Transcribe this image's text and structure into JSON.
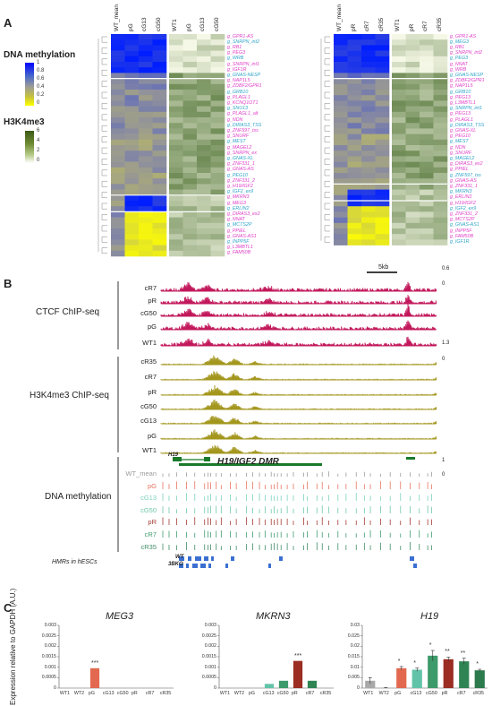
{
  "panels": {
    "a": "A",
    "b": "B",
    "c": "C"
  },
  "legend": {
    "methylation_title": "DNA methylation",
    "methylation_ticks": [
      "1",
      "0.8",
      "0.6",
      "0.4",
      "0.2",
      "0"
    ],
    "h3k4me3_title": "H3K4me3",
    "h3k4me3_ticks": [
      "6",
      "4",
      "2",
      "0"
    ]
  },
  "heatmap_left": {
    "meth_cols": [
      "WT_mean",
      "pG",
      "cG13",
      "cG50"
    ],
    "h3_cols": [
      "WT1",
      "pG",
      "cG13",
      "cG50"
    ],
    "rows": [
      "g_GPR1-AS",
      "g_SNRPN_int2",
      "g_RB1",
      "g_PEG3",
      "g_WRB",
      "g_SNRPN_int1",
      "g_IGF1R",
      "g_GNAS-NESP",
      "g_NAP1L5",
      "g_ZDBF2/GPR1",
      "g_GRB10",
      "g_PLAGL1",
      "g_KCNQ1OT1",
      "g_SNU13",
      "g_PLAGL1_alt",
      "g_NDN",
      "g_DIRAS3_TSS",
      "g_ZNF597_tss",
      "g_SNURF",
      "g_MEST",
      "g_MAGEL2",
      "g_SNRPN_ex",
      "g_GNAS-XL",
      "g_ZNF331_1",
      "g_GNAS-AS",
      "g_PEG10",
      "g_ZNF331_2",
      "g_H19/IGF2",
      "g_IGF2_ex9",
      "g_MKRN3",
      "g_MEG3",
      "g_ERLIN2",
      "g_DIRAS3_ex2",
      "g_NNAT",
      "g_MCTS2P",
      "g_PPIEL",
      "g_GNAS-AS1",
      "g_INPP5F",
      "g_L3MBTL1",
      "g_FAM50B"
    ]
  },
  "heatmap_right": {
    "meth_cols": [
      "WT_mean",
      "pR",
      "cR7",
      "cR35"
    ],
    "h3_cols": [
      "WT1",
      "pR",
      "cR7",
      "cR35"
    ],
    "rows": [
      "g_GPR1-AS",
      "g_MEG3",
      "g_RB1",
      "g_SNRPN_int2",
      "g_PEG3",
      "g_NNAT",
      "g_WRB",
      "g_GNAS-NESP",
      "g_ZDBF2/GPR1",
      "g_NAP1L5",
      "g_GRB10",
      "g_PEG13",
      "g_L3MBTL1",
      "g_SNRPN_int1",
      "g_PEG13",
      "g_PLAGL1",
      "g_DIRAS3_TSS",
      "g_GNAS-XL",
      "g_PEG10",
      "g_MEST",
      "g_NDN",
      "g_SNURF",
      "g_MAGEL2",
      "g_DIRAS3_ex2",
      "g_PPIEL",
      "g_ZNF597_tss",
      "g_GNAS-AS",
      "g_ZNF331_1",
      "g_MKRN3",
      "g_ERLIN2",
      "g_H19/IGF2",
      "g_IGF2_ex9",
      "g_ZNF331_2",
      "g_MCTS2P",
      "g_GNAS-AS1",
      "g_INPP5F",
      "g_FAM50B",
      "g_IGF1R"
    ]
  },
  "tracks": {
    "scale_label": "5kb",
    "ctcf_group": "CTCF ChIP-seq",
    "ctcf_tracks": [
      "cR7",
      "pR",
      "cG50",
      "pG",
      "WT1"
    ],
    "ctcf_scale_top": "0.6",
    "ctcf_scale_bottom": "0",
    "ctcf_scale_top2": "1.3",
    "ctcf_scale_bottom2": "0",
    "h3_group": "H3K4me3 ChIP-seq",
    "h3_tracks": [
      "cR35",
      "cR7",
      "pR",
      "cG50",
      "cG13",
      "pG",
      "WT1"
    ],
    "meth_group": "DNA methylation",
    "meth_tracks": [
      "WT_mean",
      "pG",
      "cG13",
      "cG50",
      "pR",
      "cR7",
      "cR35"
    ],
    "meth_scale_top": "1",
    "meth_scale_bottom": "0",
    "gene_label": "H19",
    "dmr_label": "H19/IGF2 DMR",
    "hmr_label": "HMRs in hESCs",
    "hmr_wt": "WT",
    "hmr_3bko": "3BKO"
  },
  "chart_data": [
    {
      "type": "bar",
      "title": "MEG3",
      "ylabel": "Expression relative to GAPDH (A.U.)",
      "categories": [
        "WT1",
        "WT2",
        "pG",
        "cG13",
        "cG50",
        "pR",
        "cR7",
        "cR35"
      ],
      "values": [
        0.0,
        0.0,
        0.00095,
        0.0,
        0.0,
        0.0,
        0.0,
        0.0
      ],
      "ylim": [
        0,
        0.003
      ],
      "yticks": [
        "0.003",
        "0.0025",
        "0.002",
        "0.0015",
        "0.001",
        "0.0005",
        "0"
      ],
      "significance": [
        "",
        "",
        "***",
        "",
        "",
        "",
        "",
        ""
      ]
    },
    {
      "type": "bar",
      "title": "MKRN3",
      "categories": [
        "WT1",
        "WT2",
        "pG",
        "cG13",
        "cG50",
        "pR",
        "cR7",
        "cR35"
      ],
      "values": [
        0.0,
        0.0,
        0.0,
        0.0002,
        0.00035,
        0.0013,
        0.00035,
        0.0
      ],
      "ylim": [
        0,
        0.003
      ],
      "yticks": [
        "0.003",
        "0.0025",
        "0.002",
        "0.0015",
        "0.001",
        "0.0005",
        "0"
      ],
      "significance": [
        "",
        "",
        "",
        "",
        "",
        "***",
        "",
        ""
      ]
    },
    {
      "type": "bar",
      "title": "H19",
      "categories": [
        "WT1",
        "WT2",
        "pG",
        "cG13",
        "cG50",
        "pR",
        "cR7",
        "cR35"
      ],
      "values": [
        0.0035,
        0.0002,
        0.0095,
        0.0088,
        0.0155,
        0.0138,
        0.0128,
        0.0085
      ],
      "errors": [
        0.0015,
        0.0001,
        0.0008,
        0.0008,
        0.0025,
        0.001,
        0.0015,
        0.0005
      ],
      "ylim": [
        0,
        0.03
      ],
      "yticks": [
        "0.03",
        "0.025",
        "0.02",
        "0.015",
        "0.01",
        "0.005",
        "0"
      ],
      "significance": [
        "",
        "",
        "*",
        "*",
        "*",
        "**",
        "**",
        "*"
      ]
    }
  ],
  "colors": {
    "wt": "#a9a9a9",
    "pG": "#e2694f",
    "cG13": "#62c3a8",
    "cG50": "#3c9a6b",
    "pR": "#9b2d22",
    "cR7": "#2f8454",
    "cR35": "#2d7a4d",
    "ctcf": "#c2185b",
    "h3": "#a3961d",
    "meth_wt": "#9b9b9b",
    "meth_pG": "#e9735f",
    "meth_cG13": "#7bd0bc",
    "meth_cG50": "#6ec7ac",
    "meth_pR": "#a33b32",
    "meth_cR7": "#3f9c6f",
    "meth_cR35": "#3f8c66",
    "hmr": "#3a6fd1",
    "label_pink": "#e040c8",
    "label_cyan": "#2fa4c8"
  }
}
